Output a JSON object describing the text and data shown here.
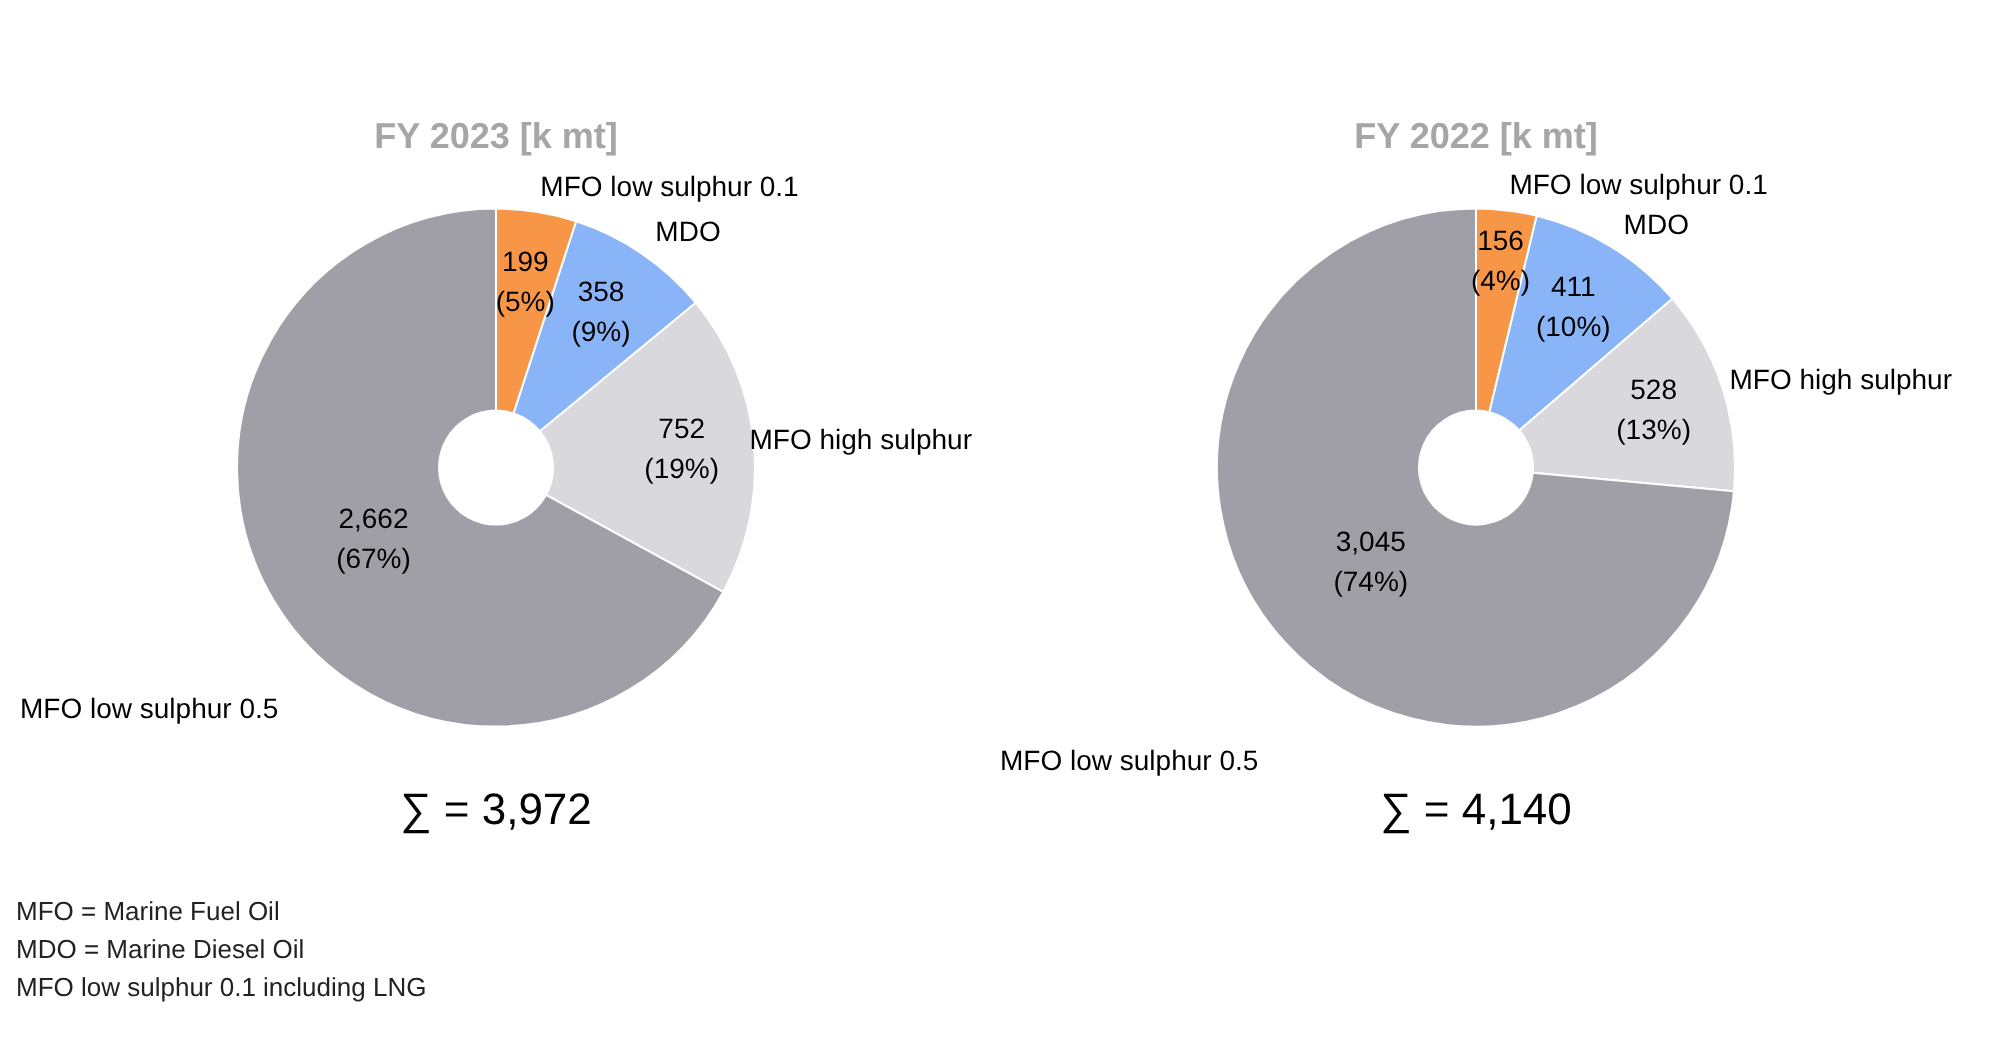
{
  "chart_data": [
    {
      "type": "donut",
      "title": "FY 2023 [k mt]",
      "categories": [
        "MFO low sulphur 0.1",
        "MDO",
        "MFO high sulphur",
        "MFO low sulphur 0.5"
      ],
      "values": [
        199,
        358,
        752,
        2662
      ],
      "colors": [
        "#f79646",
        "#8ab4f8",
        "#d9d8dd",
        "#a09fa8"
      ],
      "value_labels": [
        "199\n(5%)",
        "358\n(9%)",
        "752\n(19%)",
        "2,662\n(67%)"
      ],
      "annotations": [
        "∑ = 3,972",
        "MFO = Marine Fuel Oil",
        "MDO = Marine Diesel Oil",
        "MFO low sulphur 0.1 including LNG"
      ],
      "legend": false
    },
    {
      "type": "donut",
      "title": "FY 2022 [k mt]",
      "categories": [
        "MFO low sulphur 0.1",
        "MDO",
        "MFO high sulphur",
        "MFO low sulphur 0.5"
      ],
      "values": [
        156,
        411,
        528,
        3045
      ],
      "colors": [
        "#f79646",
        "#8ab4f8",
        "#d9d8dd",
        "#a09fa8"
      ],
      "value_labels": [
        "156\n(4%)",
        "411\n(10%)",
        "528\n(13%)",
        "3,045\n(74%)"
      ],
      "annotations": [
        "∑ = 4,140"
      ],
      "legend": false
    }
  ]
}
